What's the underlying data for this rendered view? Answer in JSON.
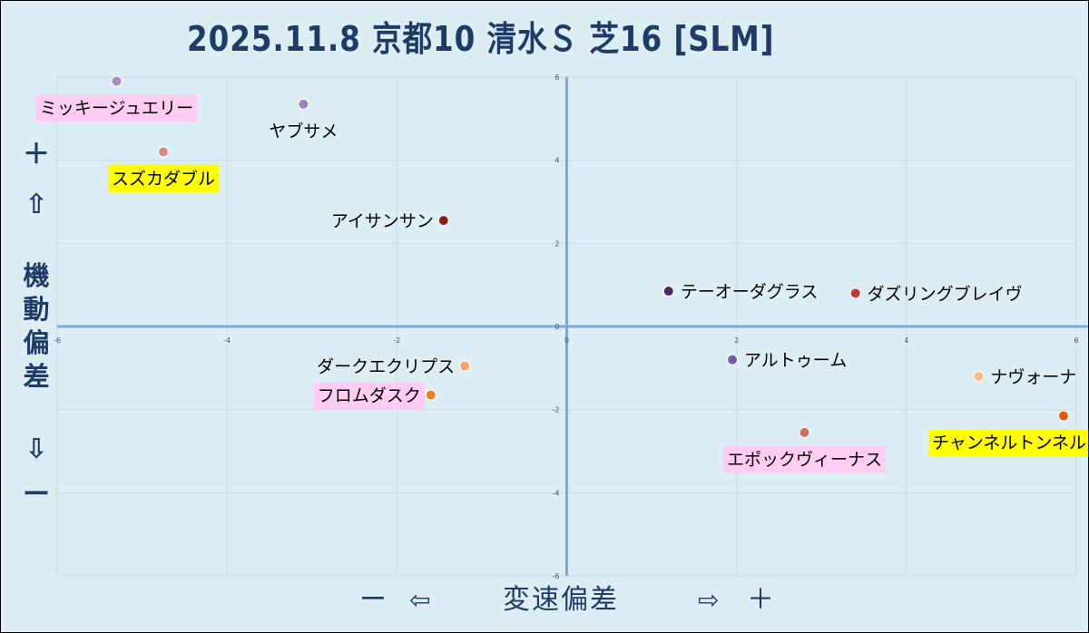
{
  "title": "2025.11.8 京都10 清水Ｓ 芝16 [SLM]",
  "ylabel": {
    "plus": "＋",
    "up_arrow": "⇧",
    "text": "機動偏差",
    "down_arrow": "⇩",
    "minus": "ー"
  },
  "xlabel": {
    "minus": "ー",
    "left_arrow": "⇦",
    "text": "変速偏差",
    "right_arrow": "⇨",
    "plus": "＋"
  },
  "chart_data": {
    "type": "scatter",
    "title": "2025.11.8 京都10 清水Ｓ 芝16 [SLM]",
    "xlabel": "変速偏差",
    "ylabel": "機動偏差",
    "xlim": [
      -6,
      6
    ],
    "ylim": [
      -6,
      6
    ],
    "x_ticks": [
      -6,
      -4,
      -2,
      0,
      2,
      4,
      6
    ],
    "y_ticks": [
      -6,
      -4,
      -2,
      0,
      2,
      4,
      6
    ],
    "grid": true,
    "points": [
      {
        "name": "ミッキージュエリー",
        "x": -5.3,
        "y": 5.9,
        "color": "#a98bc1",
        "highlight": "#ffccf2",
        "label_side": "below"
      },
      {
        "name": "ヤブサメ",
        "x": -3.1,
        "y": 5.35,
        "color": "#9b82bd",
        "highlight": "",
        "label_side": "below"
      },
      {
        "name": "スズカダブル",
        "x": -4.75,
        "y": 4.2,
        "color": "#d88a88",
        "highlight": "#ffff00",
        "label_side": "below"
      },
      {
        "name": "アイサンサン",
        "x": -1.45,
        "y": 2.55,
        "color": "#8b1a1a",
        "highlight": "",
        "label_side": "left"
      },
      {
        "name": "テーオーダグラス",
        "x": 1.2,
        "y": 0.85,
        "color": "#4b2a5e",
        "highlight": "",
        "label_side": "right"
      },
      {
        "name": "ダズリングブレイヴ",
        "x": 3.4,
        "y": 0.8,
        "color": "#c0392b",
        "highlight": "",
        "label_side": "right"
      },
      {
        "name": "アルトゥーム",
        "x": 1.95,
        "y": -0.8,
        "color": "#7b56a8",
        "highlight": "",
        "label_side": "right"
      },
      {
        "name": "ナヴォーナ",
        "x": 4.85,
        "y": -1.2,
        "color": "#f5b98c",
        "highlight": "",
        "label_side": "right"
      },
      {
        "name": "ダークエクリプス",
        "x": -1.2,
        "y": -0.95,
        "color": "#f5a265",
        "highlight": "",
        "label_side": "left"
      },
      {
        "name": "フロムダスク",
        "x": -1.6,
        "y": -1.65,
        "color": "#f07f24",
        "highlight": "#ffccf2",
        "label_side": "left"
      },
      {
        "name": "チャンネルトンネル",
        "x": 5.85,
        "y": -2.15,
        "color": "#e05a10",
        "highlight": "#ffff00",
        "label_side": "below"
      },
      {
        "name": "エポックヴィーナス",
        "x": 2.8,
        "y": -2.55,
        "color": "#cd7060",
        "highlight": "#ffccf2",
        "label_side": "below"
      }
    ]
  }
}
